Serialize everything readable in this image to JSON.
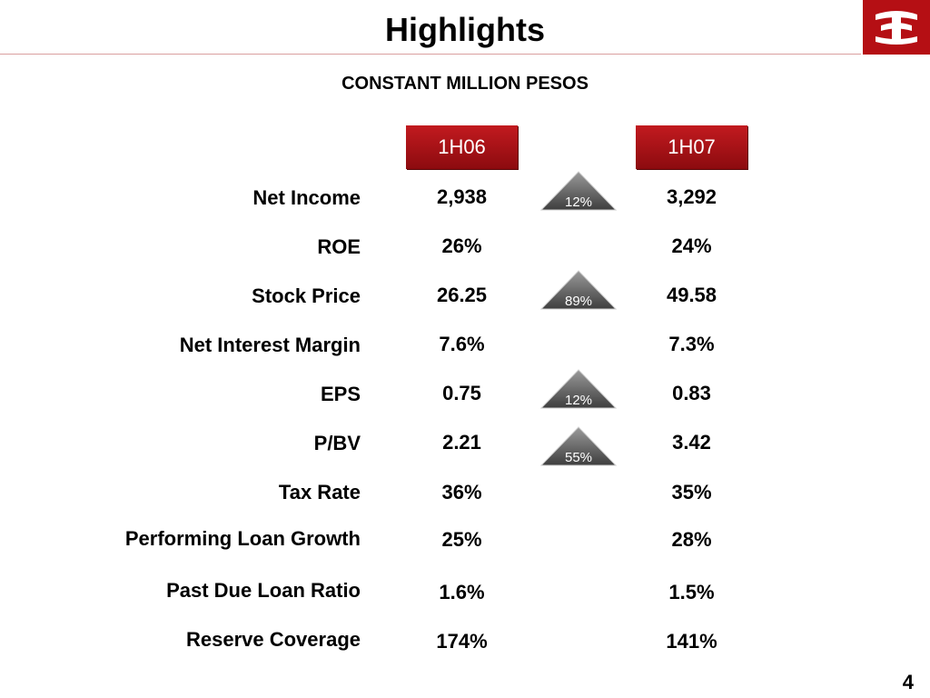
{
  "title": "Highlights",
  "subtitle": "CONSTANT MILLION PESOS",
  "columns": [
    "1H06",
    "1H07"
  ],
  "rows": [
    {
      "label": "Net Income",
      "v1": "2,938",
      "v2": "3,292",
      "change": "12%"
    },
    {
      "label": "ROE",
      "v1": "26%",
      "v2": "24%"
    },
    {
      "label": "Stock Price",
      "v1": "26.25",
      "v2": "49.58",
      "change": "89%"
    },
    {
      "label": "Net Interest Margin",
      "v1": "7.6%",
      "v2": "7.3%"
    },
    {
      "label": "EPS",
      "v1": "0.75",
      "v2": "0.83",
      "change": "12%"
    },
    {
      "label": "P/BV",
      "v1": "2.21",
      "v2": "3.42",
      "change": "55%"
    },
    {
      "label": "Tax Rate",
      "v1": "36%",
      "v2": "35%"
    },
    {
      "label": "Performing Loan Growth",
      "v1": "25%",
      "v2": "28%"
    },
    {
      "label": "Past Due Loan Ratio",
      "v1": "1.6%",
      "v2": "1.5%"
    },
    {
      "label": "Reserve Coverage",
      "v1": "174%",
      "v2": "141%"
    }
  ],
  "page_number": "4",
  "colors": {
    "accent": "#b50f14",
    "badge": "#555555"
  },
  "logo_icon": "bank-logo-icon"
}
